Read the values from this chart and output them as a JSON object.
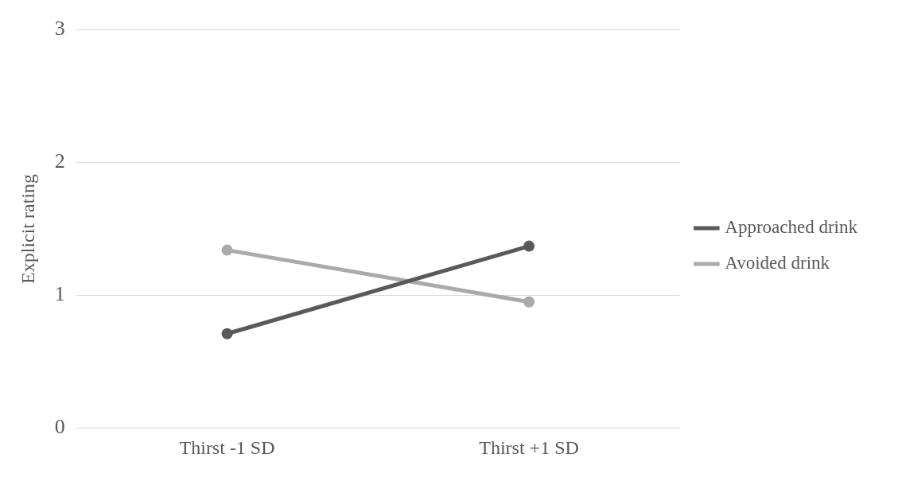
{
  "chart_data": {
    "type": "line",
    "ylabel": "Explicit rating",
    "categories": [
      "Thirst -1 SD",
      "Thirst +1 SD"
    ],
    "series": [
      {
        "name": "Approached drink",
        "color": "#595959",
        "values": [
          0.71,
          1.37
        ]
      },
      {
        "name": "Avoided drink",
        "color": "#aaaaaa",
        "values": [
          1.34,
          0.95
        ]
      }
    ],
    "ylim": [
      0,
      3
    ],
    "yticks": [
      0,
      1,
      2,
      3
    ],
    "grid": "y",
    "legend": "right",
    "marker": "circle",
    "line_style": "solid"
  }
}
